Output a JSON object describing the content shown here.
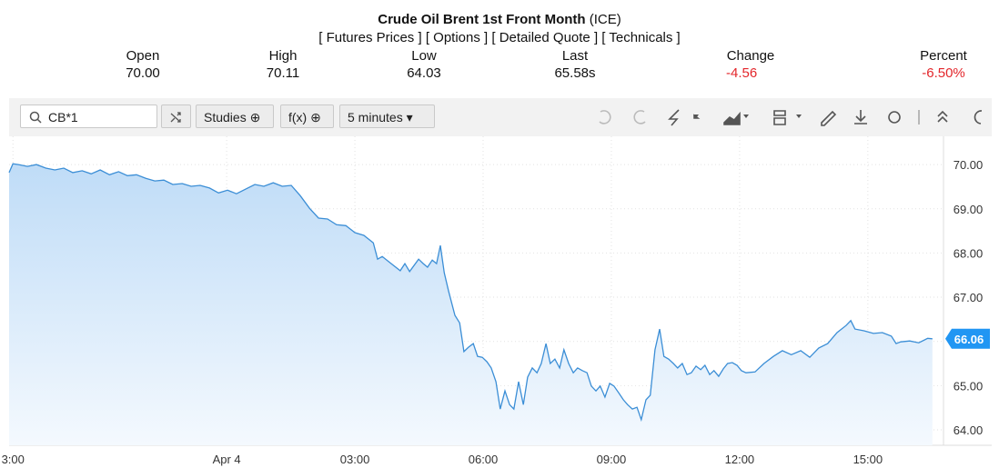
{
  "header": {
    "title": "Crude Oil Brent 1st Front Month",
    "exchange": "(ICE)",
    "links": [
      "[ Futures Prices ]",
      "[ Options ]",
      "[ Detailed Quote ]",
      "[ Technicals ]"
    ],
    "quote": [
      {
        "label": "Open",
        "value": "70.00"
      },
      {
        "label": "High",
        "value": "70.11"
      },
      {
        "label": "Low",
        "value": "64.03"
      },
      {
        "label": "Last",
        "value": "65.58s"
      },
      {
        "label": "Change",
        "value": "-4.56"
      },
      {
        "label": "Percent",
        "value": "-6.50%"
      }
    ]
  },
  "toolbar": {
    "symbol": "CB*1",
    "studies": "Studies",
    "functions": "f(x)",
    "interval": "5 minutes"
  },
  "chart_data": {
    "type": "line",
    "x": [
      -0.09,
      0,
      0.13,
      0.34,
      0.55,
      0.77,
      0.98,
      1.19,
      1.4,
      1.62,
      1.83,
      2.04,
      2.26,
      2.47,
      2.68,
      2.89,
      3.11,
      3.32,
      3.53,
      3.74,
      3.96,
      4.17,
      4.38,
      4.6,
      4.81,
      5.02,
      5.23,
      5.45,
      5.66,
      5.87,
      6.09,
      6.3,
      6.51,
      6.72,
      6.94,
      7.15,
      7.36,
      7.57,
      7.79,
      8.0,
      8.21,
      8.43,
      8.53,
      8.64,
      8.85,
      9.06,
      9.17,
      9.28,
      9.49,
      9.6,
      9.7,
      9.81,
      9.91,
      10.0,
      10.09,
      10.19,
      10.34,
      10.45,
      10.55,
      10.66,
      10.77,
      10.87,
      10.98,
      11.09,
      11.19,
      11.3,
      11.4,
      11.51,
      11.62,
      11.72,
      11.83,
      11.94,
      12.04,
      12.15,
      12.26,
      12.36,
      12.47,
      12.57,
      12.68,
      12.79,
      12.89,
      13.0,
      13.11,
      13.21,
      13.32,
      13.43,
      13.53,
      13.64,
      13.74,
      13.85,
      13.96,
      14.06,
      14.17,
      14.28,
      14.38,
      14.49,
      14.6,
      14.7,
      14.81,
      14.91,
      15.02,
      15.13,
      15.23,
      15.34,
      15.45,
      15.55,
      15.66,
      15.77,
      15.87,
      15.98,
      16.09,
      16.19,
      16.3,
      16.4,
      16.51,
      16.62,
      16.72,
      16.83,
      16.94,
      17.04,
      17.15,
      17.36,
      17.57,
      17.79,
      18.0,
      18.21,
      18.43,
      18.64,
      18.85,
      19.06,
      19.28,
      19.49,
      19.6,
      19.7,
      19.91,
      20.13,
      20.34,
      20.55,
      20.66,
      20.77,
      20.98,
      21.19,
      21.4,
      21.51
    ],
    "series": [
      {
        "color": "#3b8ed6",
        "values": [
          69.82,
          70.02,
          70.0,
          69.96,
          70.0,
          69.92,
          69.88,
          69.92,
          69.82,
          69.86,
          69.79,
          69.88,
          69.77,
          69.84,
          69.75,
          69.77,
          69.69,
          69.63,
          69.65,
          69.55,
          69.57,
          69.51,
          69.53,
          69.47,
          69.36,
          69.42,
          69.34,
          69.45,
          69.55,
          69.51,
          69.59,
          69.51,
          69.53,
          69.3,
          69.01,
          68.79,
          68.77,
          68.64,
          68.62,
          68.46,
          68.4,
          68.23,
          67.86,
          67.92,
          67.76,
          67.6,
          67.76,
          67.58,
          67.86,
          67.76,
          67.68,
          67.84,
          67.76,
          68.17,
          67.55,
          67.14,
          66.59,
          66.42,
          65.77,
          65.87,
          65.95,
          65.66,
          65.64,
          65.54,
          65.4,
          65.09,
          64.47,
          64.88,
          64.57,
          64.47,
          65.09,
          64.57,
          65.19,
          65.4,
          65.29,
          65.5,
          65.95,
          65.5,
          65.6,
          65.4,
          65.81,
          65.5,
          65.29,
          65.4,
          65.34,
          65.29,
          64.99,
          64.88,
          64.99,
          64.74,
          65.05,
          64.99,
          64.84,
          64.68,
          64.57,
          64.47,
          64.51,
          64.23,
          64.68,
          64.78,
          65.81,
          66.28,
          65.66,
          65.6,
          65.5,
          65.4,
          65.5,
          65.25,
          65.29,
          65.44,
          65.36,
          65.46,
          65.25,
          65.34,
          65.21,
          65.38,
          65.5,
          65.52,
          65.46,
          65.34,
          65.29,
          65.31,
          65.5,
          65.66,
          65.79,
          65.7,
          65.79,
          65.64,
          65.85,
          65.95,
          66.2,
          66.36,
          66.47,
          66.28,
          66.24,
          66.18,
          66.2,
          66.12,
          65.95,
          65.99,
          66.01,
          65.97,
          66.07,
          66.06
        ]
      }
    ],
    "xlim": [
      -0.09,
      21.77
    ],
    "xticks": [
      {
        "value": 0,
        "label": "3:00"
      },
      {
        "value": 5,
        "label": "Apr 4"
      },
      {
        "value": 8,
        "label": "03:00"
      },
      {
        "value": 11,
        "label": "06:00"
      },
      {
        "value": 14,
        "label": "09:00"
      },
      {
        "value": 17,
        "label": "12:00"
      },
      {
        "value": 20,
        "label": "15:00"
      }
    ],
    "ylim": [
      63.65,
      70.64
    ],
    "yticks": [
      {
        "value": 64,
        "label": "64.00"
      },
      {
        "value": 65,
        "label": "65.00"
      },
      {
        "value": 66,
        "label": "66.00"
      },
      {
        "value": 67,
        "label": "67.00"
      },
      {
        "value": 68,
        "label": "68.00"
      },
      {
        "value": 69,
        "label": "69.00"
      },
      {
        "value": 70,
        "label": "70.00"
      }
    ],
    "grid": true,
    "current_price": {
      "value": 66.06,
      "label": "66.06"
    }
  }
}
